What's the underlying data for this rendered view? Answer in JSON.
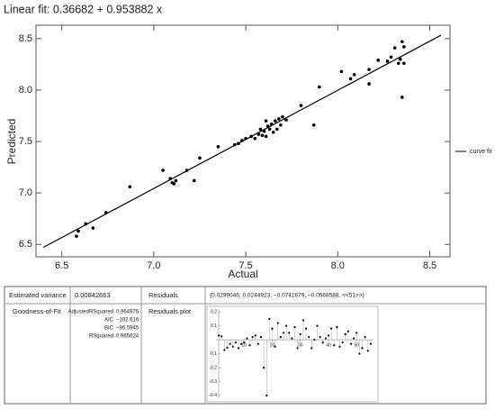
{
  "chart_data": {
    "type": "scatter",
    "title": "Linear fit: 0.36682 + 0.953882 x",
    "xlabel": "Actual",
    "ylabel": "Predicted",
    "xlim": [
      6.36,
      8.61
    ],
    "ylim": [
      6.38,
      8.63
    ],
    "xticks": [
      6.5,
      {
        "value": 7,
        "label": "7.0"
      },
      7.5,
      {
        "value": 8,
        "label": "8.0"
      },
      8.5
    ],
    "yticks": [
      6.5,
      {
        "value": 7,
        "label": "7.0"
      },
      7.5,
      {
        "value": 8,
        "label": "8.0"
      },
      8.5
    ],
    "legend": "right",
    "series": [
      {
        "color": "#000000",
        "x": [
          6.58,
          6.59,
          6.63,
          6.67,
          6.74,
          6.87,
          7.05,
          7.09,
          7.1,
          7.11,
          7.12,
          7.18,
          7.22,
          7.25,
          7.35,
          7.44,
          7.46,
          7.48,
          7.5,
          7.53,
          7.55,
          7.57,
          7.58,
          7.59,
          7.6,
          7.61,
          7.62,
          7.63,
          7.64,
          7.65,
          7.66,
          7.67,
          7.68,
          7.7,
          7.69,
          7.72,
          7.8,
          7.87,
          7.9,
          8.02,
          8.07,
          8.09,
          8.17,
          8.17,
          8.22,
          8.27,
          8.29,
          8.31,
          8.33,
          8.34,
          8.35,
          8.35,
          8.36,
          8.36,
          7.61
        ],
        "values": [
          6.58,
          6.63,
          6.7,
          6.66,
          6.81,
          7.06,
          7.22,
          7.14,
          7.1,
          7.09,
          7.12,
          7.22,
          7.12,
          7.34,
          7.45,
          7.47,
          7.48,
          7.51,
          7.53,
          7.55,
          7.53,
          7.57,
          7.62,
          7.56,
          7.6,
          7.7,
          7.65,
          7.62,
          7.67,
          7.59,
          7.7,
          7.62,
          7.72,
          7.74,
          7.66,
          7.71,
          7.85,
          7.66,
          8.03,
          8.18,
          8.11,
          8.15,
          8.06,
          8.2,
          8.29,
          8.28,
          8.32,
          8.41,
          8.26,
          8.3,
          8.47,
          7.93,
          8.42,
          8.26,
          7.55
        ]
      },
      {
        "name": "curve fit",
        "type": "line",
        "color": "#000000",
        "x": [
          6.4,
          8.56
        ],
        "values": [
          6.4717,
          8.5321
        ]
      }
    ]
  },
  "table": {
    "rows": [
      [
        "Estimated variance",
        "0.00842663",
        "Residuals",
        "{0.0299046, 0.0244923, −0.0741679, −0.0568588, <<51>>}"
      ],
      [
        "Goodness-of-Fit",
        "Residuals plot"
      ]
    ],
    "fit_stats": [
      [
        "AdjustedRSquared",
        "0.964976"
      ],
      [
        "AIC",
        "−102.616"
      ],
      [
        "BIC",
        "−96.5945"
      ],
      [
        "RSquared",
        "0.965624"
      ]
    ]
  },
  "residuals_plot": {
    "xlim": [
      0,
      56
    ],
    "ylim": [
      -0.42,
      0.22
    ],
    "xticks": [
      10,
      20,
      30,
      40,
      50
    ],
    "yticks": [
      0.2,
      0.1,
      -0.1,
      -0.2,
      -0.3,
      -0.4
    ],
    "color": "#000000",
    "values": [
      0.0299,
      0.0245,
      -0.0742,
      -0.0569,
      -0.03,
      -0.05,
      -0.02,
      -0.06,
      -0.03,
      -0.02,
      0.01,
      -0.04,
      0.02,
      0.03,
      -0.03,
      0.02,
      -0.2,
      -0.4,
      0.15,
      0.08,
      -0.05,
      0.12,
      0.02,
      0.05,
      0.1,
      0.05,
      0.01,
      0.09,
      -0.06,
      0.04,
      0.14,
      0.08,
      0.02,
      -0.06,
      0.0,
      0.1,
      0.02,
      -0.02,
      0.01,
      0.03,
      0.08,
      -0.04,
      0.09,
      -0.05,
      -0.02,
      0.04,
      0.06,
      -0.03,
      0.01,
      0.05,
      -0.1,
      -0.06,
      0.02,
      -0.08,
      -0.03
    ]
  }
}
